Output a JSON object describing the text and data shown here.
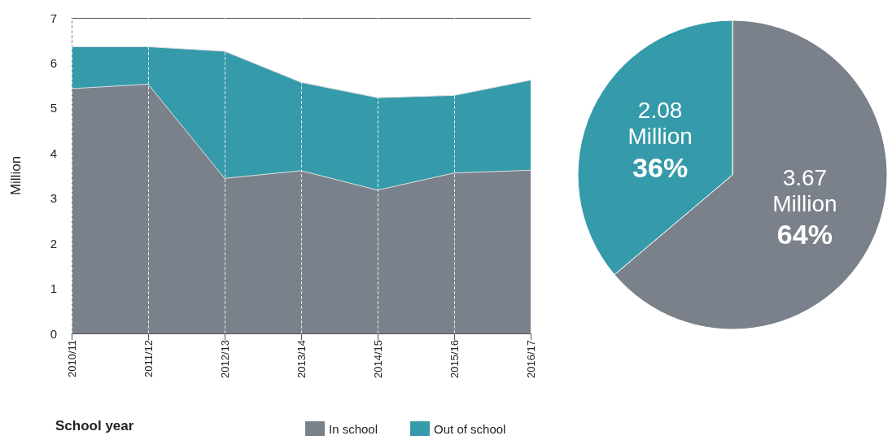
{
  "chart_data": [
    {
      "type": "area",
      "stacked": true,
      "xlabel": "School year",
      "ylabel": "Million",
      "categories": [
        "2010/11",
        "2011/12",
        "2012/13",
        "2013/14",
        "2014/15",
        "2015/16",
        "2016/17"
      ],
      "series": [
        {
          "name": "In school",
          "color": "#7b818b",
          "values": [
            5.43,
            5.53,
            3.44,
            3.61,
            3.18,
            3.56,
            3.62
          ]
        },
        {
          "name": "Out of school",
          "color": "#359aaa",
          "values": [
            0.93,
            0.83,
            2.82,
            1.96,
            2.05,
            1.72,
            2.0
          ]
        }
      ],
      "ylim": [
        0,
        7
      ],
      "yticks": [
        0,
        1,
        2,
        3,
        4,
        5,
        6,
        7
      ],
      "grid": "x",
      "legend": "bottom",
      "marker": "none"
    },
    {
      "type": "pie",
      "categories": [
        null,
        null
      ],
      "values": [
        3.67,
        2.08
      ],
      "colors": [
        "#7b818b",
        "#359aaa"
      ],
      "value_labels": [
        "3.67 Million 64%",
        "2.08 Million 36%"
      ]
    }
  ]
}
